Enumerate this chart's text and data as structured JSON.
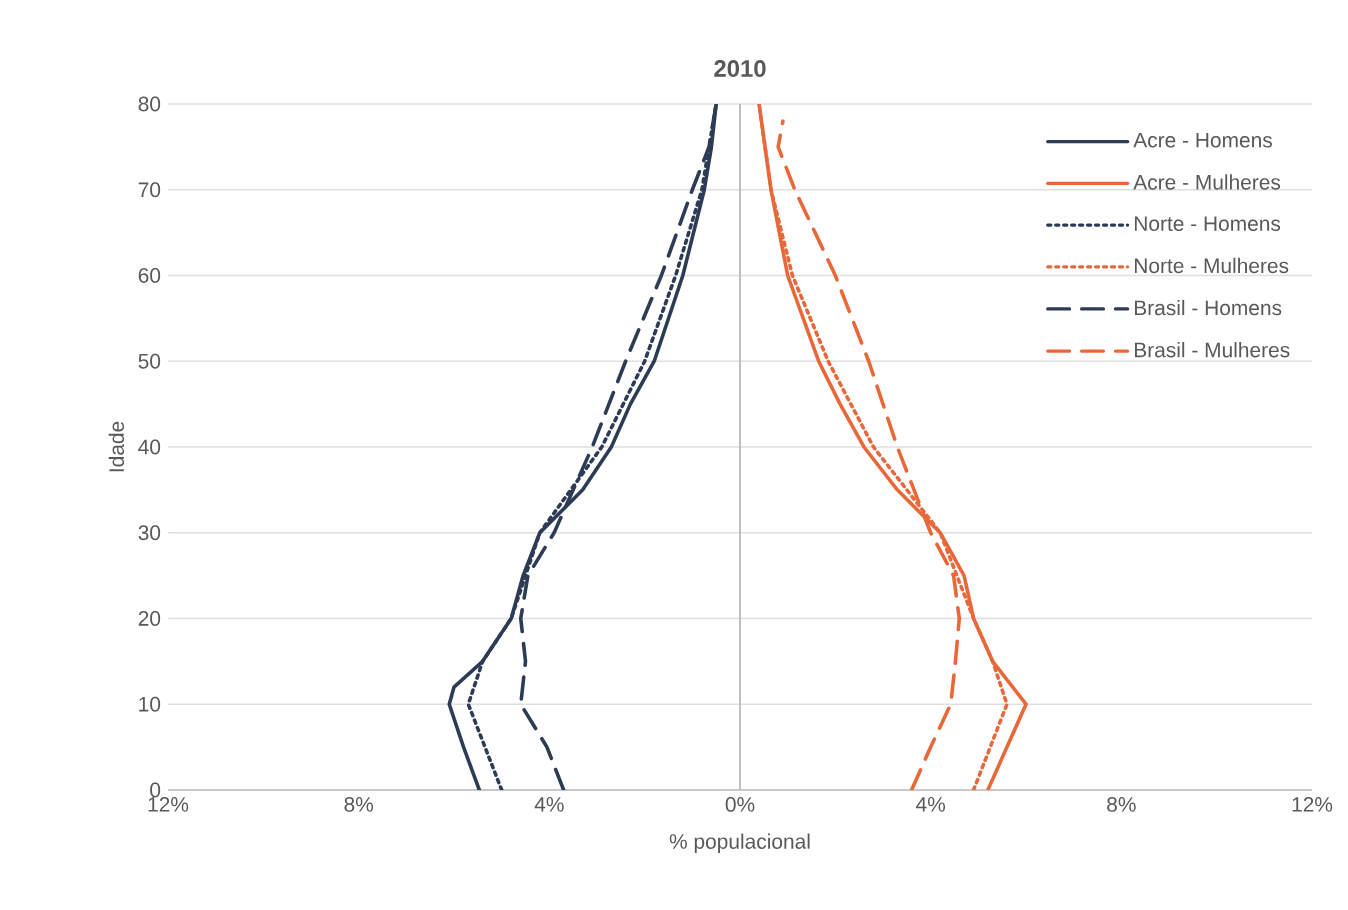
{
  "chart_data": {
    "type": "line",
    "title": "2010",
    "xlabel": "% populacional",
    "ylabel": "Idade",
    "xlim": [
      -12,
      12
    ],
    "ylim": [
      0,
      80
    ],
    "xticks": [
      {
        "value": -12,
        "label": "12%"
      },
      {
        "value": -8,
        "label": "8%"
      },
      {
        "value": -4,
        "label": "4%"
      },
      {
        "value": 0,
        "label": "0%"
      },
      {
        "value": 4,
        "label": "4%"
      },
      {
        "value": 8,
        "label": "8%"
      },
      {
        "value": 12,
        "label": "12%"
      }
    ],
    "yticks": [
      0,
      10,
      20,
      30,
      40,
      50,
      60,
      70,
      80
    ],
    "grid": "y",
    "legend": "top right",
    "marker": "none",
    "ref_lines": [
      {
        "axis": "x",
        "value": 0,
        "color": "#bfbfbf"
      }
    ],
    "series": [
      {
        "name": "Acre - Homens",
        "color": "#2e3b55",
        "line_style": "solid",
        "values": [
          0,
          5,
          10,
          12,
          15,
          20,
          25,
          30,
          35,
          40,
          45,
          50,
          60,
          70,
          75,
          80
        ],
        "x": [
          -5.47,
          -5.8,
          -6.1,
          -6.0,
          -5.4,
          -4.8,
          -4.55,
          -4.2,
          -3.3,
          -2.7,
          -2.3,
          -1.8,
          -1.2,
          -0.75,
          -0.6,
          -0.5
        ]
      },
      {
        "name": "Acre - Mulheres",
        "color": "#e8683a",
        "line_style": "solid",
        "values": [
          0,
          5,
          10,
          15,
          20,
          25,
          30,
          35,
          40,
          45,
          50,
          60,
          70,
          80
        ],
        "x": [
          5.2,
          5.6,
          6.0,
          5.3,
          4.9,
          4.7,
          4.2,
          3.3,
          2.6,
          2.1,
          1.65,
          1.0,
          0.65,
          0.4
        ]
      },
      {
        "name": "Norte - Homens",
        "color": "#2e3b55",
        "line_style": "dotted",
        "values": [
          0,
          10,
          15,
          20,
          30,
          40,
          50,
          60,
          70,
          80
        ],
        "x": [
          -5.0,
          -5.7,
          -5.4,
          -4.8,
          -4.2,
          -2.9,
          -2.0,
          -1.35,
          -0.8,
          -0.5
        ]
      },
      {
        "name": "Norte - Mulheres",
        "color": "#e8683a",
        "line_style": "dotted",
        "values": [
          0,
          10,
          15,
          20,
          30,
          40,
          50,
          60,
          70,
          80
        ],
        "x": [
          4.9,
          5.6,
          5.3,
          4.9,
          4.2,
          2.8,
          1.85,
          1.1,
          0.65,
          0.4
        ]
      },
      {
        "name": "Brasil - Homens",
        "color": "#2e3b55",
        "line_style": "dashed",
        "values": [
          0,
          5,
          10,
          15,
          20,
          25,
          30,
          35,
          40,
          50,
          60,
          70,
          75,
          80
        ],
        "x": [
          -3.7,
          -4.05,
          -4.6,
          -4.5,
          -4.6,
          -4.45,
          -3.9,
          -3.5,
          -3.1,
          -2.4,
          -1.65,
          -1.0,
          -0.65,
          -0.5
        ]
      },
      {
        "name": "Brasil - Mulheres",
        "color": "#e8683a",
        "line_style": "dashed",
        "values": [
          0,
          5,
          10,
          15,
          20,
          25,
          30,
          40,
          50,
          60,
          70,
          75,
          78
        ],
        "x": [
          3.6,
          4.0,
          4.42,
          4.52,
          4.6,
          4.48,
          4.0,
          3.3,
          2.7,
          2.0,
          1.15,
          0.8,
          0.9
        ]
      }
    ]
  }
}
